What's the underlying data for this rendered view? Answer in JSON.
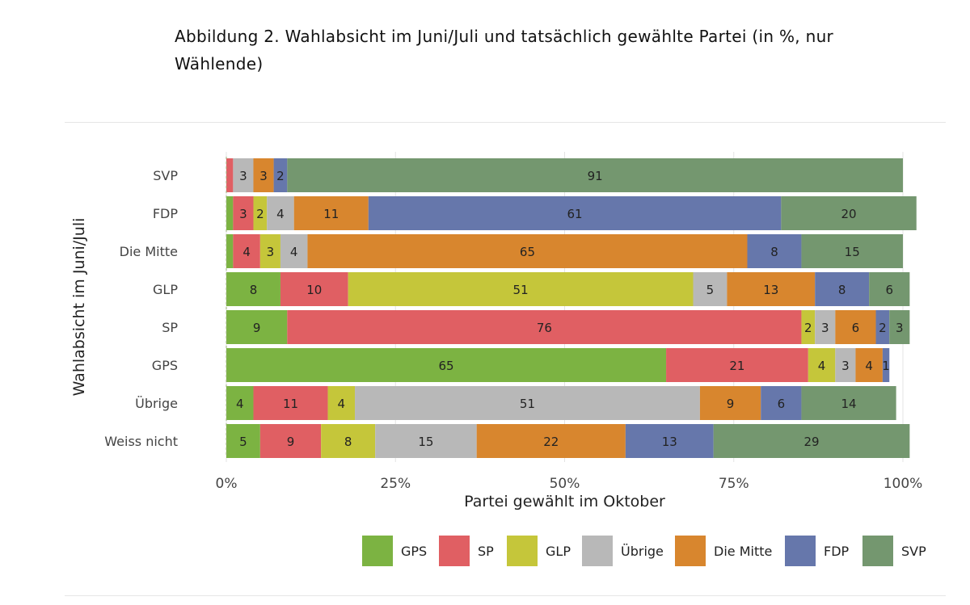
{
  "title": "Abbildung 2. Wahlabsicht im Juni/Juli und tatsächlich gewählte Partei (in %, nur Wählende)",
  "chart_data": {
    "type": "bar",
    "orientation": "horizontal",
    "stacked": true,
    "percent_stacked": true,
    "xlabel": "Partei gewählt im Oktober",
    "ylabel": "Wahlabsicht im Juni/Juli",
    "xlim": [
      0,
      100
    ],
    "x_ticks": [
      "0%",
      "25%",
      "50%",
      "75%",
      "100%"
    ],
    "x_tick_values": [
      0,
      25,
      50,
      75,
      100
    ],
    "grid": true,
    "legend_position": "bottom",
    "categories": [
      "SVP",
      "FDP",
      "Die Mitte",
      "GLP",
      "SP",
      "GPS",
      "Übrige",
      "Weiss nicht"
    ],
    "series": [
      {
        "name": "GPS",
        "color": "#7cb342",
        "values": [
          0,
          1,
          1,
          8,
          9,
          65,
          4,
          5
        ]
      },
      {
        "name": "SP",
        "color": "#e05f63",
        "values": [
          1,
          3,
          4,
          10,
          76,
          21,
          11,
          9
        ]
      },
      {
        "name": "GLP",
        "color": "#c5c63a",
        "values": [
          0,
          2,
          3,
          51,
          2,
          4,
          4,
          8
        ]
      },
      {
        "name": "Übrige",
        "color": "#b8b8b8",
        "values": [
          3,
          4,
          4,
          5,
          3,
          3,
          51,
          15
        ]
      },
      {
        "name": "Die Mitte",
        "color": "#d8862e",
        "values": [
          3,
          11,
          65,
          13,
          6,
          4,
          9,
          22
        ]
      },
      {
        "name": "FDP",
        "color": "#6677ab",
        "values": [
          2,
          61,
          8,
          8,
          2,
          1,
          6,
          13
        ]
      },
      {
        "name": "SVP",
        "color": "#74976f",
        "values": [
          91,
          20,
          15,
          6,
          3,
          0,
          14,
          29
        ]
      }
    ],
    "labels": [
      [
        "",
        "",
        "",
        "3",
        "3",
        "2",
        "91"
      ],
      [
        "",
        "3",
        "2",
        "4",
        "11",
        "61",
        "20"
      ],
      [
        "",
        "4",
        "3",
        "4",
        "65",
        "8",
        "15"
      ],
      [
        "8",
        "10",
        "51",
        "5",
        "13",
        "8",
        "6"
      ],
      [
        "9",
        "76",
        "2",
        "3",
        "6",
        "2",
        "3"
      ],
      [
        "65",
        "21",
        "4",
        "3",
        "4",
        "1",
        ""
      ],
      [
        "4",
        "11",
        "4",
        "51",
        "9",
        "6",
        "14"
      ],
      [
        "5",
        "9",
        "8",
        "15",
        "22",
        "13",
        "29"
      ]
    ]
  }
}
